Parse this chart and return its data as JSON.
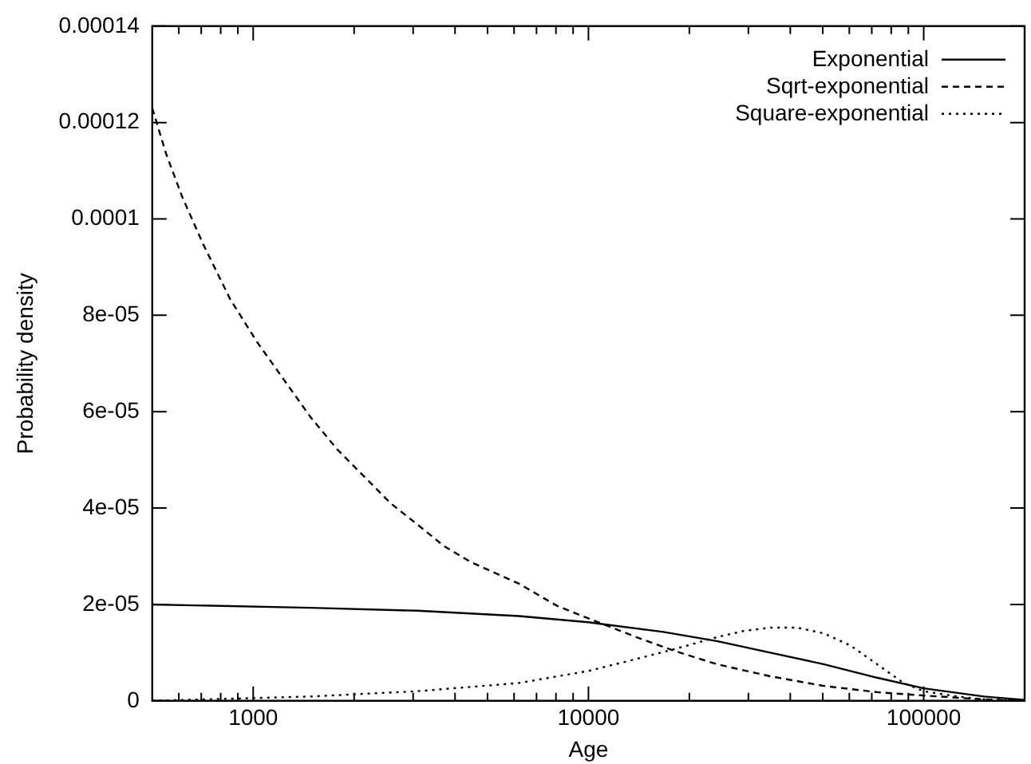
{
  "chart_data": {
    "type": "line",
    "xlabel": "Age",
    "ylabel": "Probability density",
    "log": "x",
    "xlim": [
      500,
      200000
    ],
    "ylim": [
      0,
      0.00014
    ],
    "xticks": [
      {
        "value": 600,
        "label": null
      },
      {
        "value": 700,
        "label": null
      },
      {
        "value": 800,
        "label": null
      },
      {
        "value": 900,
        "label": null
      },
      1000,
      {
        "value": 2000,
        "label": null
      },
      {
        "value": 3000,
        "label": null
      },
      {
        "value": 4000,
        "label": null
      },
      {
        "value": 5000,
        "label": null
      },
      {
        "value": 6000,
        "label": null
      },
      {
        "value": 7000,
        "label": null
      },
      {
        "value": 8000,
        "label": null
      },
      {
        "value": 9000,
        "label": null
      },
      10000,
      {
        "value": 20000,
        "label": null
      },
      {
        "value": 30000,
        "label": null
      },
      {
        "value": 40000,
        "label": null
      },
      {
        "value": 50000,
        "label": null
      },
      {
        "value": 60000,
        "label": null
      },
      {
        "value": 70000,
        "label": null
      },
      {
        "value": 80000,
        "label": null
      },
      {
        "value": 90000,
        "label": null
      },
      100000,
      {
        "value": 200000,
        "label": null
      }
    ],
    "yticks": [
      0,
      {
        "value": 2e-05,
        "label": "2e-05"
      },
      {
        "value": 4e-05,
        "label": "4e-05"
      },
      {
        "value": 6e-05,
        "label": "6e-05"
      },
      {
        "value": 8e-05,
        "label": "8e-05"
      },
      0.0001,
      0.00012,
      0.00014
    ],
    "legend": "top right",
    "grid": false,
    "series": [
      {
        "name": "Exponential",
        "color": "#000000",
        "line_style": "solid",
        "x": [
          500,
          1482,
          3088,
          6207,
          10000,
          16720,
          24150,
          34860,
          50300,
          72600,
          100000,
          151400,
          200000
        ],
        "values": [
          2e-05,
          1.93e-05,
          1.87e-05,
          1.76e-05,
          1.63e-05,
          1.43e-05,
          1.24e-05,
          1e-05,
          7.6e-06,
          4.8e-06,
          2.6e-06,
          9e-07,
          2e-07
        ]
      },
      {
        "name": "Sqrt-exponential",
        "color": "#000000",
        "line_style": "dashed",
        "x": [
          500,
          550,
          614,
          711,
          853,
          1026,
          1233,
          1482,
          1780,
          2139,
          2570,
          3088,
          3710,
          4459,
          6207,
          8020,
          10000,
          13930,
          17990,
          24150,
          34860,
          50300,
          72600,
          100000,
          151400,
          200000
        ],
        "values": [
          0.000123,
          0.0001135,
          0.0001046,
          9.46e-05,
          8.34e-05,
          7.45e-05,
          6.67e-05,
          5.89e-05,
          5.22e-05,
          4.66e-05,
          4.1e-05,
          3.66e-05,
          3.21e-05,
          2.88e-05,
          2.43e-05,
          1.98e-05,
          1.71e-05,
          1.32e-05,
          1.04e-05,
          7.6e-06,
          5.1e-06,
          3.1e-06,
          1.8e-06,
          1.1e-06,
          3e-07,
          0
        ]
      },
      {
        "name": "Square-exponential",
        "color": "#000000",
        "line_style": "dotted",
        "x": [
          500,
          1482,
          3088,
          6207,
          10000,
          13930,
          17990,
          24150,
          29030,
          34860,
          41880,
          50300,
          60400,
          72600,
          87150,
          100000,
          125800,
          151400,
          200000
        ],
        "values": [
          0,
          9e-07,
          2e-06,
          3.7e-06,
          6.2e-06,
          8.7e-06,
          1.07e-05,
          1.32e-05,
          1.45e-05,
          1.52e-05,
          1.52e-05,
          1.4e-05,
          1.15e-05,
          7.6e-06,
          3.7e-06,
          2e-06,
          9e-07,
          3e-07,
          0
        ]
      }
    ]
  }
}
